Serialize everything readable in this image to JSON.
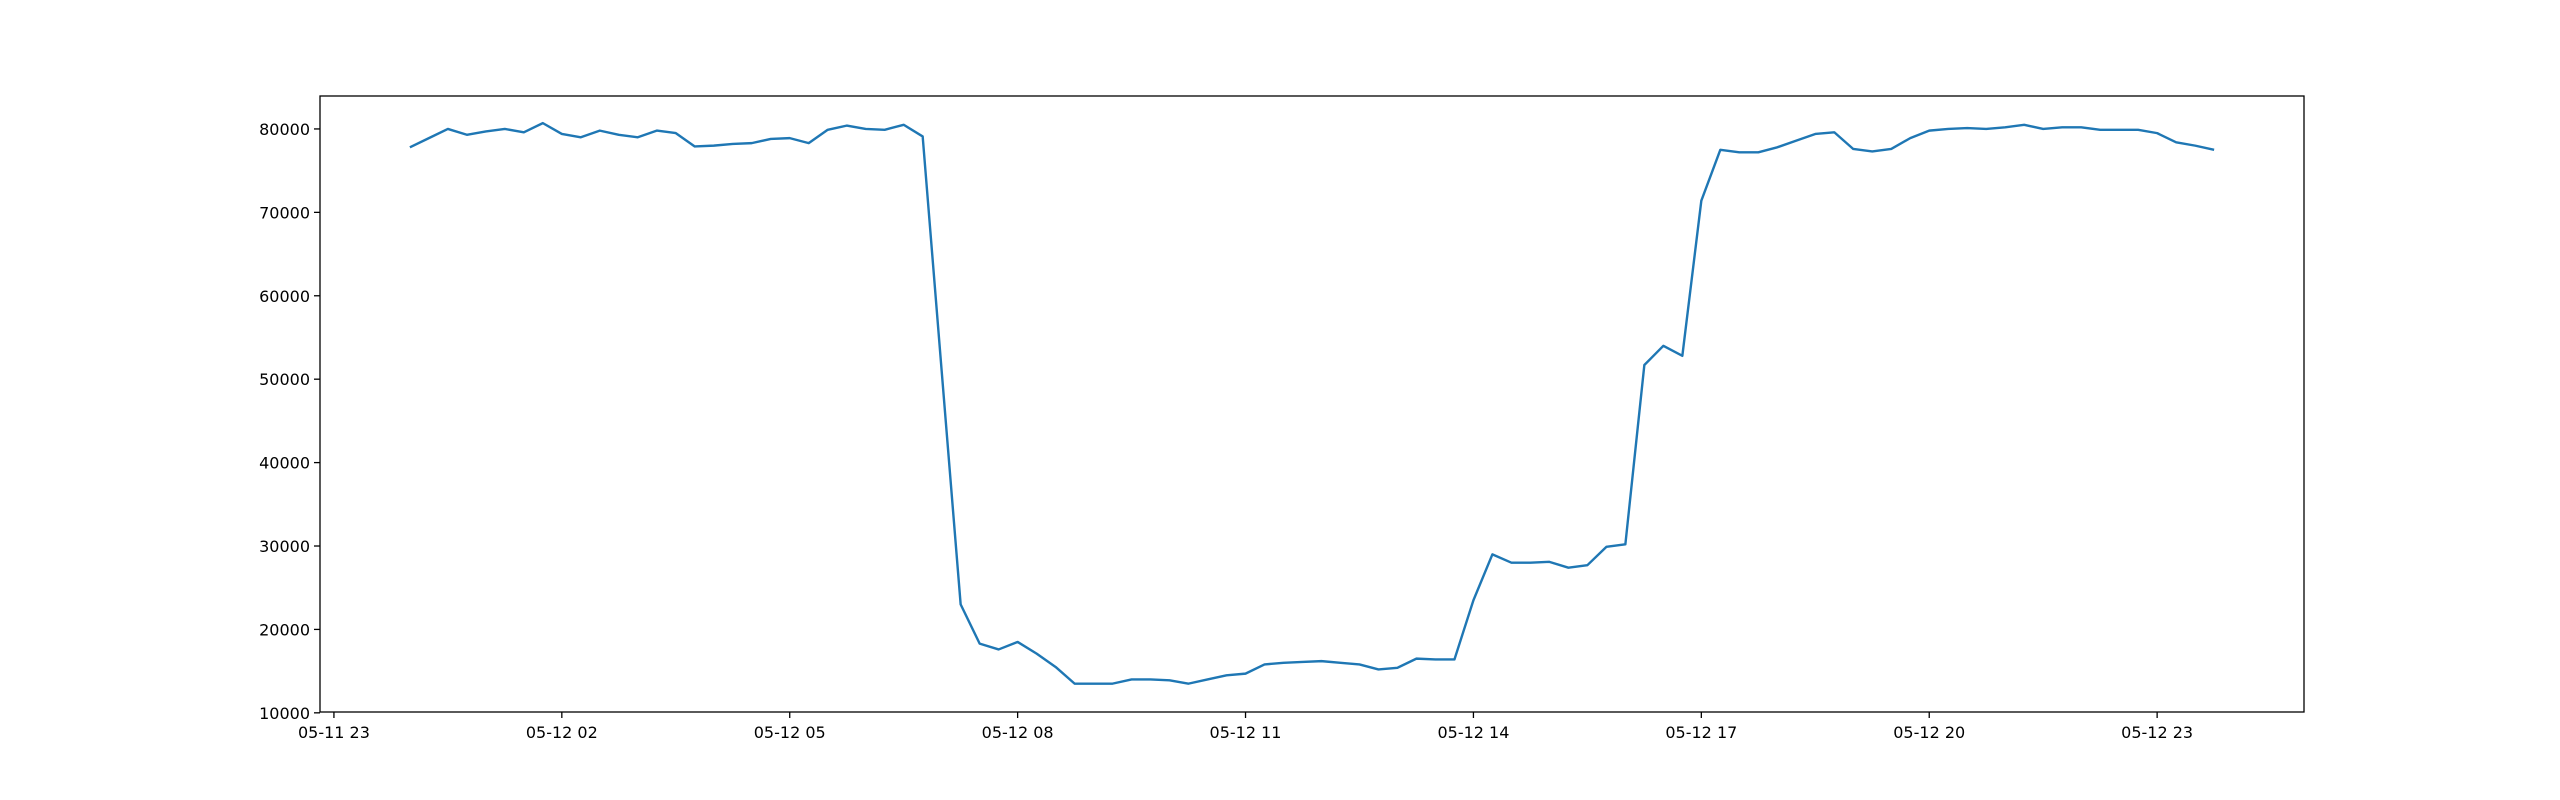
{
  "chart_data": {
    "type": "line",
    "x": [
      "05-12 00:00",
      "05-12 00:15",
      "05-12 00:30",
      "05-12 00:45",
      "05-12 01:00",
      "05-12 01:15",
      "05-12 01:30",
      "05-12 01:45",
      "05-12 02:00",
      "05-12 02:15",
      "05-12 02:30",
      "05-12 02:45",
      "05-12 03:00",
      "05-12 03:15",
      "05-12 03:30",
      "05-12 03:45",
      "05-12 04:00",
      "05-12 04:15",
      "05-12 04:30",
      "05-12 04:45",
      "05-12 05:00",
      "05-12 05:15",
      "05-12 05:30",
      "05-12 05:45",
      "05-12 06:00",
      "05-12 06:15",
      "05-12 06:30",
      "05-12 06:45",
      "05-12 07:00",
      "05-12 07:15",
      "05-12 07:30",
      "05-12 07:45",
      "05-12 08:00",
      "05-12 08:15",
      "05-12 08:30",
      "05-12 08:45",
      "05-12 09:00",
      "05-12 09:15",
      "05-12 09:30",
      "05-12 09:45",
      "05-12 10:00",
      "05-12 10:15",
      "05-12 10:30",
      "05-12 10:45",
      "05-12 11:00",
      "05-12 11:15",
      "05-12 11:30",
      "05-12 11:45",
      "05-12 12:00",
      "05-12 12:15",
      "05-12 12:30",
      "05-12 12:45",
      "05-12 13:00",
      "05-12 13:15",
      "05-12 13:30",
      "05-12 13:45",
      "05-12 14:00",
      "05-12 14:15",
      "05-12 14:30",
      "05-12 14:45",
      "05-12 15:00",
      "05-12 15:15",
      "05-12 15:30",
      "05-12 15:45",
      "05-12 16:00",
      "05-12 16:15",
      "05-12 16:30",
      "05-12 16:45",
      "05-12 17:00",
      "05-12 17:15",
      "05-12 17:30",
      "05-12 17:45",
      "05-12 18:00",
      "05-12 18:15",
      "05-12 18:30",
      "05-12 18:45",
      "05-12 19:00",
      "05-12 19:15",
      "05-12 19:30",
      "05-12 19:45",
      "05-12 20:00",
      "05-12 20:15",
      "05-12 20:30",
      "05-12 20:45",
      "05-12 21:00",
      "05-12 21:15",
      "05-12 21:30",
      "05-12 21:45",
      "05-12 22:00",
      "05-12 22:15",
      "05-12 22:30",
      "05-12 22:45",
      "05-12 23:00",
      "05-12 23:15",
      "05-12 23:30",
      "05-12 23:45"
    ],
    "series": [
      {
        "color": "#1f77b4",
        "values": [
          77800,
          78900,
          80000,
          79300,
          79700,
          80000,
          79600,
          80700,
          79400,
          79000,
          79800,
          79300,
          79000,
          79800,
          79500,
          77900,
          78000,
          78200,
          78300,
          78800,
          78900,
          78300,
          79900,
          80400,
          80000,
          79900,
          80500,
          79100,
          51000,
          23000,
          18300,
          17600,
          18500,
          17100,
          15500,
          13500,
          13500,
          13500,
          14000,
          14000,
          13900,
          13500,
          14000,
          14500,
          14700,
          15800,
          16000,
          16100,
          16200,
          16000,
          15800,
          15200,
          15400,
          16500,
          16400,
          16400,
          23500,
          29000,
          28000,
          28000,
          28100,
          27400,
          27700,
          29900,
          30200,
          51700,
          54000,
          52800,
          71400,
          77500,
          77200,
          77200,
          77800,
          78600,
          79400,
          79600,
          77600,
          77300,
          77600,
          78900,
          79800,
          80000,
          80100,
          80000,
          80200,
          80500,
          80000,
          80200,
          80200,
          79900,
          79900,
          79900,
          79500,
          78400,
          78000,
          77500
        ]
      }
    ],
    "xlim": [
      "05-11 22:49",
      "05-13 00:56"
    ],
    "xticks": [
      "05-11 23",
      "05-12 02",
      "05-12 05",
      "05-12 08",
      "05-12 11",
      "05-12 14",
      "05-12 17",
      "05-12 20",
      "05-12 23"
    ],
    "ylim": [
      10100,
      83950
    ],
    "yticks": [
      10000,
      20000,
      30000,
      40000,
      50000,
      60000,
      70000,
      80000
    ]
  }
}
